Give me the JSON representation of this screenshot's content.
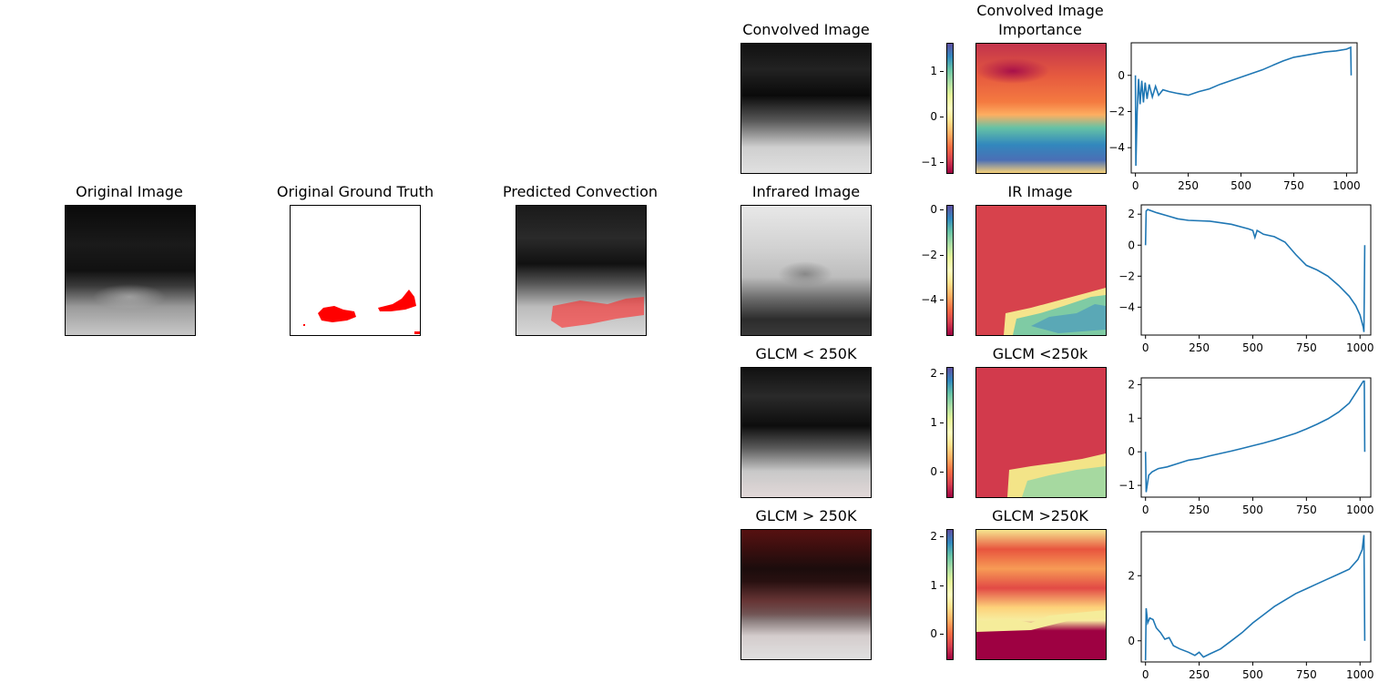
{
  "titles": {
    "original_image": "Original Image",
    "original_ground_truth": "Original Ground Truth",
    "predicted_convection": "Predicted Convection",
    "convolved_image": "Convolved Image",
    "convolved_importance_line1": "Convolved Image",
    "convolved_importance_line2": "Importance",
    "infrared_image": "Infrared Image",
    "ir_image": "IR Image",
    "glcm_lt_250k": "GLCM < 250K",
    "glcm_lt_250k_importance": "GLCM <250k",
    "glcm_gt_250k": "GLCM > 250K",
    "glcm_gt_250k_importance": "GLCM >250K"
  },
  "colorbars": [
    {
      "ticks": [
        "1",
        "0",
        "−1"
      ],
      "range": [
        -1.25,
        1.6
      ]
    },
    {
      "ticks": [
        "0",
        "−2",
        "−4"
      ],
      "range": [
        -5.5,
        0.3
      ]
    },
    {
      "ticks": [
        "2",
        "1",
        "0"
      ],
      "range": [
        -0.5,
        2.15
      ]
    },
    {
      "ticks": [
        "2",
        "1",
        "0"
      ],
      "range": [
        -0.55,
        2.15
      ]
    }
  ],
  "colors": {
    "line": "#1f77b4",
    "truth": "#ff0000",
    "cmap_low": "#9e0142",
    "cmap_high": "#5e4fa2"
  },
  "chart_data": [
    {
      "type": "line",
      "title": "",
      "xlim": [
        -20,
        1050
      ],
      "ylim": [
        -5.4,
        1.8
      ],
      "xticks": [
        0,
        250,
        500,
        750,
        1000
      ],
      "yticks": [
        -4,
        -2,
        0
      ],
      "series": [
        {
          "points": [
            [
              0,
              0
            ],
            [
              2,
              -5
            ],
            [
              8,
              -2
            ],
            [
              15,
              -0.2
            ],
            [
              22,
              -1.6
            ],
            [
              30,
              -0.3
            ],
            [
              38,
              -1.5
            ],
            [
              46,
              -0.4
            ],
            [
              55,
              -1.3
            ],
            [
              65,
              -0.5
            ],
            [
              80,
              -1.2
            ],
            [
              95,
              -0.6
            ],
            [
              110,
              -1.1
            ],
            [
              130,
              -0.8
            ],
            [
              160,
              -0.9
            ],
            [
              200,
              -1.0
            ],
            [
              250,
              -1.1
            ],
            [
              300,
              -0.9
            ],
            [
              350,
              -0.75
            ],
            [
              400,
              -0.5
            ],
            [
              450,
              -0.3
            ],
            [
              500,
              -0.1
            ],
            [
              550,
              0.1
            ],
            [
              600,
              0.3
            ],
            [
              650,
              0.55
            ],
            [
              700,
              0.8
            ],
            [
              750,
              1.0
            ],
            [
              800,
              1.1
            ],
            [
              850,
              1.2
            ],
            [
              900,
              1.3
            ],
            [
              950,
              1.35
            ],
            [
              1000,
              1.45
            ],
            [
              1020,
              1.55
            ],
            [
              1022,
              0
            ]
          ]
        }
      ]
    },
    {
      "type": "line",
      "title": "",
      "xlim": [
        -20,
        1050
      ],
      "ylim": [
        -5.8,
        2.6
      ],
      "xticks": [
        0,
        250,
        500,
        750,
        1000
      ],
      "yticks": [
        -4,
        -2,
        0,
        2
      ],
      "series": [
        {
          "points": [
            [
              0,
              0
            ],
            [
              3,
              2.2
            ],
            [
              10,
              2.3
            ],
            [
              50,
              2.1
            ],
            [
              100,
              1.9
            ],
            [
              150,
              1.7
            ],
            [
              200,
              1.6
            ],
            [
              300,
              1.55
            ],
            [
              400,
              1.35
            ],
            [
              480,
              1.05
            ],
            [
              500,
              0.95
            ],
            [
              510,
              0.5
            ],
            [
              520,
              0.95
            ],
            [
              550,
              0.7
            ],
            [
              600,
              0.55
            ],
            [
              650,
              0.2
            ],
            [
              700,
              -0.6
            ],
            [
              750,
              -1.3
            ],
            [
              800,
              -1.6
            ],
            [
              850,
              -2.0
            ],
            [
              900,
              -2.6
            ],
            [
              950,
              -3.3
            ],
            [
              980,
              -3.9
            ],
            [
              1000,
              -4.5
            ],
            [
              1015,
              -5.3
            ],
            [
              1018,
              -5.6
            ],
            [
              1022,
              0
            ]
          ]
        }
      ]
    },
    {
      "type": "line",
      "title": "",
      "xlim": [
        -20,
        1050
      ],
      "ylim": [
        -1.35,
        2.2
      ],
      "xticks": [
        0,
        250,
        500,
        750,
        1000
      ],
      "yticks": [
        -1,
        0,
        1,
        2
      ],
      "series": [
        {
          "points": [
            [
              0,
              0
            ],
            [
              3,
              -1.2
            ],
            [
              15,
              -0.7
            ],
            [
              30,
              -0.6
            ],
            [
              60,
              -0.5
            ],
            [
              100,
              -0.45
            ],
            [
              150,
              -0.35
            ],
            [
              200,
              -0.25
            ],
            [
              250,
              -0.2
            ],
            [
              300,
              -0.12
            ],
            [
              350,
              -0.05
            ],
            [
              400,
              0.02
            ],
            [
              450,
              0.1
            ],
            [
              500,
              0.18
            ],
            [
              550,
              0.26
            ],
            [
              600,
              0.35
            ],
            [
              650,
              0.45
            ],
            [
              700,
              0.55
            ],
            [
              750,
              0.68
            ],
            [
              800,
              0.82
            ],
            [
              850,
              0.98
            ],
            [
              900,
              1.18
            ],
            [
              950,
              1.45
            ],
            [
              990,
              1.85
            ],
            [
              1015,
              2.1
            ],
            [
              1020,
              2.1
            ],
            [
              1022,
              0
            ]
          ]
        }
      ]
    },
    {
      "type": "line",
      "title": "",
      "xlim": [
        -20,
        1050
      ],
      "ylim": [
        -0.65,
        3.35
      ],
      "xticks": [
        0,
        250,
        500,
        750,
        1000
      ],
      "yticks": [
        0,
        2
      ],
      "series": [
        {
          "points": [
            [
              0,
              -0.6
            ],
            [
              3,
              1.0
            ],
            [
              10,
              0.55
            ],
            [
              20,
              0.7
            ],
            [
              35,
              0.65
            ],
            [
              50,
              0.4
            ],
            [
              70,
              0.25
            ],
            [
              90,
              0.05
            ],
            [
              110,
              0.1
            ],
            [
              130,
              -0.15
            ],
            [
              160,
              -0.25
            ],
            [
              200,
              -0.35
            ],
            [
              230,
              -0.45
            ],
            [
              250,
              -0.35
            ],
            [
              270,
              -0.5
            ],
            [
              300,
              -0.4
            ],
            [
              350,
              -0.25
            ],
            [
              400,
              0
            ],
            [
              450,
              0.25
            ],
            [
              500,
              0.55
            ],
            [
              550,
              0.8
            ],
            [
              600,
              1.05
            ],
            [
              650,
              1.25
            ],
            [
              700,
              1.45
            ],
            [
              750,
              1.6
            ],
            [
              800,
              1.75
            ],
            [
              850,
              1.9
            ],
            [
              900,
              2.05
            ],
            [
              950,
              2.2
            ],
            [
              990,
              2.5
            ],
            [
              1010,
              2.8
            ],
            [
              1018,
              3.25
            ],
            [
              1022,
              0
            ]
          ]
        }
      ]
    }
  ]
}
